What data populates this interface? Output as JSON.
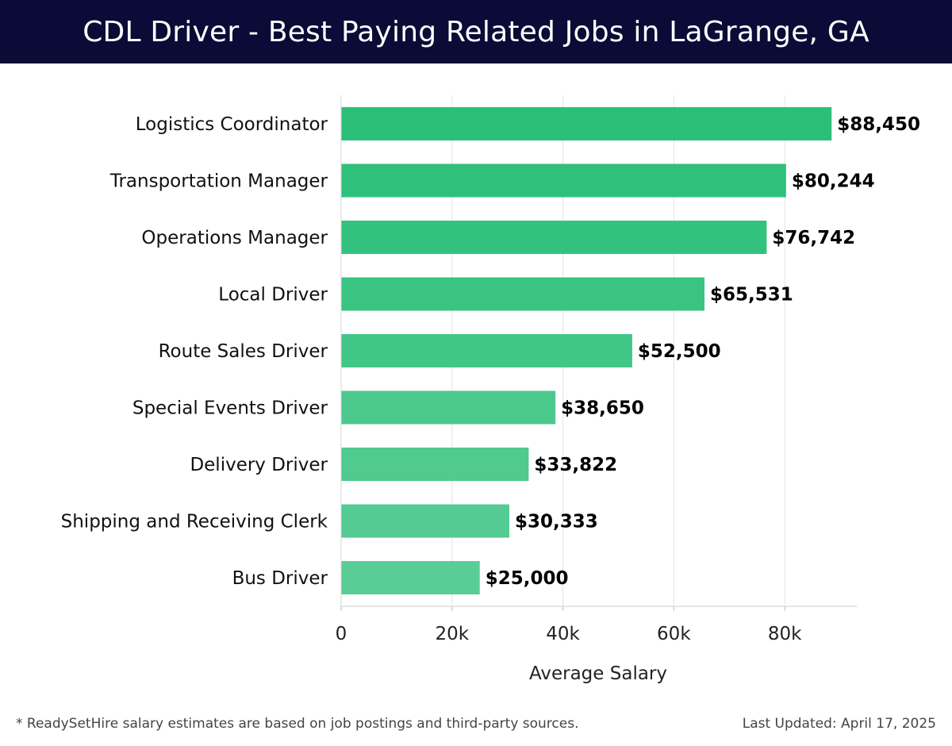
{
  "chart_data": {
    "type": "bar",
    "orientation": "horizontal",
    "title": "CDL Driver - Best Paying Related Jobs in LaGrange, GA",
    "xlabel": "Average Salary",
    "ylabel": "",
    "xlim": [
      0,
      93000
    ],
    "xticks": [
      0,
      20000,
      40000,
      60000,
      80000
    ],
    "xtick_labels": [
      "0",
      "20k",
      "40k",
      "60k",
      "80k"
    ],
    "grid": true,
    "categories": [
      "Logistics Coordinator",
      "Transportation Manager",
      "Operations Manager",
      "Local Driver",
      "Route Sales Driver",
      "Special Events Driver",
      "Delivery Driver",
      "Shipping and Receiving Clerk",
      "Bus Driver"
    ],
    "values": [
      88450,
      80244,
      76742,
      65531,
      52500,
      38650,
      33822,
      30333,
      25000
    ],
    "value_labels": [
      "$88,450",
      "$80,244",
      "$76,742",
      "$65,531",
      "$52,500",
      "$38,650",
      "$33,822",
      "$30,333",
      "$25,000"
    ],
    "colors": [
      "#2bbf78",
      "#2fc17b",
      "#33c27e",
      "#3ac482",
      "#42c687",
      "#4bc98c",
      "#50ca8f",
      "#54cb92",
      "#59cd95"
    ]
  },
  "footer": {
    "note": "* ReadySetHire salary estimates are based on job postings and third-party sources.",
    "updated": "Last Updated: April 17, 2025"
  }
}
